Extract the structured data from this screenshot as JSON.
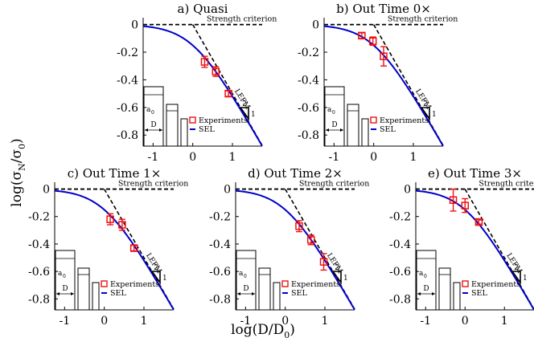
{
  "figure": {
    "ylabel": "log(σN/σ0)",
    "ylabel_main": "log(σ",
    "ylabel_sub1": "N",
    "ylabel_mid": "/σ",
    "ylabel_sub2": "0",
    "ylabel_close": ")",
    "xlabel_main": "log(D/D",
    "xlabel_sub": "0",
    "xlabel_close": ")"
  },
  "labels": {
    "strength": "Strength criterion",
    "lefm": "LEFM",
    "slope_top": "2",
    "slope_side": "1",
    "legend_experiments": "Experiments",
    "legend_sel": "SEL",
    "inset_a0": "a",
    "inset_a0_sub": "0",
    "inset_D": "D"
  },
  "colors": {
    "sel": "#0000cc",
    "experiments": "#ee1111",
    "asymptote": "#000000",
    "axis": "#000000"
  },
  "chart_data": [
    {
      "type": "line",
      "title": "a) Quasi",
      "xlim": [
        -1.25,
        1.75
      ],
      "ylim": [
        -0.88,
        0.05
      ],
      "xticks": [
        "-1",
        "0",
        "1"
      ],
      "yticks": [
        "0",
        "-0.2",
        "-0.4",
        "-0.6",
        "-0.8"
      ],
      "experiments": [
        {
          "x": 0.3,
          "y": -0.27,
          "err": 0.04
        },
        {
          "x": 0.58,
          "y": -0.34,
          "err": 0.035
        },
        {
          "x": 0.9,
          "y": -0.5,
          "err": 0.02
        }
      ]
    },
    {
      "type": "line",
      "title": "b) Out Time 0×",
      "xlim": [
        -1.25,
        1.75
      ],
      "ylim": [
        -0.88,
        0.05
      ],
      "xticks": [
        "-1",
        "0",
        "1"
      ],
      "yticks": [
        "0",
        "-0.2",
        "-0.4",
        "-0.6",
        "-0.8"
      ],
      "experiments": [
        {
          "x": -0.3,
          "y": -0.08,
          "err": 0.02
        },
        {
          "x": -0.02,
          "y": -0.12,
          "err": 0.03
        },
        {
          "x": 0.25,
          "y": -0.23,
          "err": 0.07
        }
      ]
    },
    {
      "type": "line",
      "title": "c) Out Time 1×",
      "xlim": [
        -1.25,
        1.75
      ],
      "ylim": [
        -0.88,
        0.05
      ],
      "xticks": [
        "-1",
        "0",
        "1"
      ],
      "yticks": [
        "0",
        "-0.2",
        "-0.4",
        "-0.6",
        "-0.8"
      ],
      "experiments": [
        {
          "x": 0.15,
          "y": -0.22,
          "err": 0.04
        },
        {
          "x": 0.45,
          "y": -0.26,
          "err": 0.04
        },
        {
          "x": 0.75,
          "y": -0.43,
          "err": 0.02
        }
      ]
    },
    {
      "type": "line",
      "title": "d) Out Time 2×",
      "xlim": [
        -1.25,
        1.75
      ],
      "ylim": [
        -0.88,
        0.05
      ],
      "xticks": [
        "-1",
        "0",
        "1"
      ],
      "yticks": [
        "0",
        "-0.2",
        "-0.4",
        "-0.6",
        "-0.8"
      ],
      "experiments": [
        {
          "x": 0.35,
          "y": -0.27,
          "err": 0.04
        },
        {
          "x": 0.65,
          "y": -0.37,
          "err": 0.035
        },
        {
          "x": 0.97,
          "y": -0.53,
          "err": 0.06
        }
      ]
    },
    {
      "type": "line",
      "title": "e) Out Time 3×",
      "xlim": [
        -1.25,
        1.75
      ],
      "ylim": [
        -0.88,
        0.05
      ],
      "xticks": [
        "-1",
        "0",
        "1"
      ],
      "yticks": [
        "0",
        "-0.2",
        "-0.4",
        "-0.6",
        "-0.8"
      ],
      "experiments": [
        {
          "x": -0.3,
          "y": -0.08,
          "err": 0.08
        },
        {
          "x": 0.0,
          "y": -0.12,
          "err": 0.05
        },
        {
          "x": 0.35,
          "y": -0.24,
          "err": 0.015
        }
      ]
    }
  ]
}
